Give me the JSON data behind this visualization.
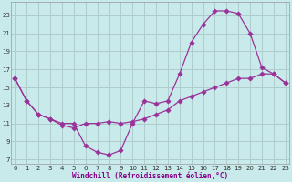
{
  "xlabel": "Windchill (Refroidissement éolien,°C)",
  "bg_color": "#c8eaea",
  "line_color": "#993399",
  "grid_color": "#b0cccc",
  "xlim": [
    -0.3,
    23.3
  ],
  "ylim": [
    6.5,
    24.5
  ],
  "xticks": [
    0,
    1,
    2,
    3,
    4,
    5,
    6,
    7,
    8,
    9,
    10,
    11,
    12,
    13,
    14,
    15,
    16,
    17,
    18,
    19,
    20,
    21,
    22,
    23
  ],
  "yticks": [
    7,
    9,
    11,
    13,
    15,
    17,
    19,
    21,
    23
  ],
  "line1_x": [
    0,
    1,
    2,
    3,
    4,
    5,
    6,
    7,
    8,
    9,
    10,
    11,
    12,
    13,
    14,
    15,
    16,
    17,
    18,
    19,
    20,
    21,
    22,
    23
  ],
  "line1_y": [
    16,
    13.5,
    12.0,
    11.5,
    11.0,
    11.0,
    8.5,
    7.8,
    7.5,
    8.0,
    11.0,
    13.5,
    13.2,
    13.5,
    16.5,
    20.0,
    22.0,
    23.5,
    23.5,
    23.2,
    21.0,
    17.2,
    16.5,
    15.5
  ],
  "line2_x": [
    0,
    1,
    2,
    3,
    4,
    5,
    6,
    7,
    8,
    9,
    10,
    11,
    12,
    13,
    14,
    15,
    16,
    17,
    18,
    19,
    20,
    21,
    22,
    23
  ],
  "line2_y": [
    16,
    13.5,
    12.0,
    11.5,
    10.8,
    10.5,
    11.0,
    11.0,
    11.2,
    11.0,
    11.2,
    11.5,
    12.0,
    12.5,
    13.5,
    14.0,
    14.5,
    15.0,
    15.5,
    16.0,
    16.0,
    16.5,
    16.5,
    15.5
  ]
}
